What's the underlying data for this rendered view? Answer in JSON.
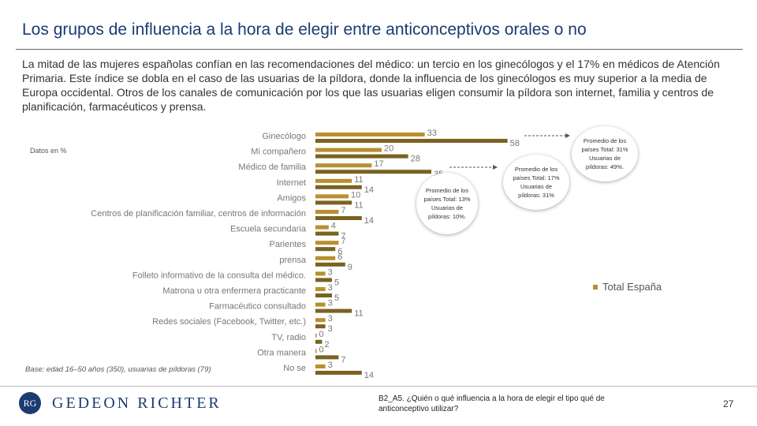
{
  "header": {
    "title": "Los grupos de influencia a la hora de elegir entre anticonceptivos orales o no",
    "intro": "La mitad de las mujeres españolas confían en las recomendaciones del médico: un tercio en los ginecólogos y el 17% en médicos de Atención Primaria. Este índice se dobla en el caso de las usuarias de la píldora, donde la influencia de los ginecólogos es muy superior a la media de Europa occidental. Otros de los canales de comunicación por los que las usuarias eligen consumir la píldora son internet, familia y centros de planificación, farmacéuticos y prensa."
  },
  "note": "Datos en %",
  "base_note": "Base: edad 16–50 años (350), usuarias de píldoras (79)",
  "chart_data": {
    "type": "bar",
    "orientation": "horizontal",
    "categories": [
      "Ginecólogo",
      "Mi compañero",
      "Médico de familia",
      "Internet",
      "Amigos",
      "Centros de planificación familiar, centros de información",
      "Escuela secundaria",
      "Parientes",
      "prensa",
      "Folleto informativo de la consulta del médico.",
      "Matrona u otra enfermera practicante",
      "Farmacéutico consultado",
      "Redes sociales (Facebook, Twitter, etc.)",
      "TV, radio",
      "Otra manera",
      "No se"
    ],
    "series": [
      {
        "name": "Total España",
        "color": "#b8902c",
        "values": [
          33,
          20,
          17,
          11,
          10,
          7,
          4,
          7,
          6,
          3,
          3,
          3,
          3,
          0,
          0,
          3
        ]
      },
      {
        "name": "Usuarias de píldoras",
        "color": "#7a6220",
        "values": [
          58,
          28,
          35,
          14,
          11,
          14,
          7,
          6,
          9,
          5,
          5,
          11,
          3,
          2,
          7,
          14
        ]
      }
    ],
    "legend": "Total España",
    "xlim": [
      0,
      100
    ]
  },
  "bubbles": [
    {
      "text": "Promedio de los países Total: 13% Usuarias de píldoras: 10%."
    },
    {
      "text": "Promedio de los países Total: 17% Usuarias de píldoras: 31%"
    },
    {
      "text": "Promedio de los países Total: 31% Usuarias de píldoras: 49%."
    }
  ],
  "footer": {
    "logo_text": "GEDEON RICHTER",
    "logo_mark": "RG",
    "footnote": "B2_A5. ¿Quién o qué influencia a la hora de elegir el tipo qué de anticonceptivo utilizar?",
    "page_number": "27"
  }
}
